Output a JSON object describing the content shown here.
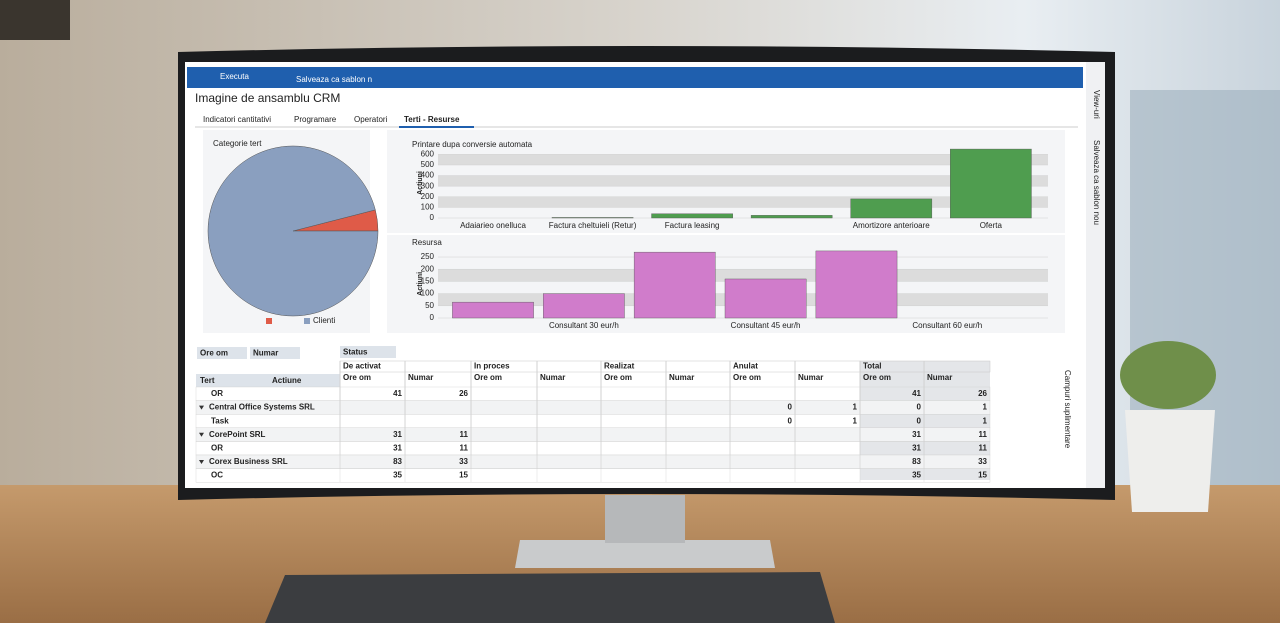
{
  "toolbar": {
    "run": "Executa",
    "save": "Salveaza ca sablon n"
  },
  "title": "Imagine de ansamblu CRM",
  "tabs": [
    "Indicatori cantitativi",
    "Programare",
    "Operatori",
    "Terti - Resurse"
  ],
  "active_tab": 3,
  "side_panel": {
    "views": "View-uri",
    "save_template": "Salveaza ca sablon nou",
    "extra_fields": "Campuri suplimentare"
  },
  "chart_data": [
    {
      "type": "pie",
      "title": "Categorie tert",
      "categories": [
        null,
        "Clienti"
      ],
      "values": [
        4,
        96
      ],
      "colors": [
        "#df5b48",
        "#8a9fbf"
      ]
    },
    {
      "type": "bar",
      "title": "Printare dupa conversie automata",
      "y_label": "Actiuni",
      "categories": [
        "Adaiarieo onelluca",
        "Factura cheltuieli (Retur)",
        "Factura leasing",
        null,
        "Amortizore anterioare",
        "Oferta"
      ],
      "values": [
        0,
        5,
        40,
        25,
        180,
        650
      ],
      "color": "#4f9d4f",
      "ylim": [
        0,
        660
      ],
      "yticks": [
        0,
        100,
        200,
        300,
        400,
        500,
        600
      ],
      "grid": true
    },
    {
      "type": "bar",
      "title": "Resursa",
      "y_label": "Actiuni",
      "categories": [
        null,
        "Consultant 30 eur/h",
        null,
        "Consultant 45 eur/h",
        null,
        "Consultant 60 eur/h"
      ],
      "values": [
        65,
        100,
        270,
        160,
        275,
        null
      ],
      "color": "#d07ccb",
      "ylim": [
        0,
        280
      ],
      "yticks": [
        0,
        50,
        100,
        150,
        200,
        250
      ],
      "grid": true
    }
  ],
  "pivot": {
    "filters": [
      "Ore om",
      "Numar"
    ],
    "column_filter": "Status",
    "row_headers": [
      "Tert",
      "Actiune"
    ],
    "groups": [
      "De activat",
      "In proces",
      "Realizat",
      "Anulat",
      "Total"
    ],
    "subcolumns": [
      "Ore om",
      "Numar"
    ],
    "rows": [
      {
        "label": "OR",
        "group": false,
        "values": [
          41,
          26,
          null,
          null,
          null,
          null,
          null,
          null,
          41,
          26
        ]
      },
      {
        "label": "Central Office Systems SRL",
        "group": true,
        "values": [
          null,
          null,
          null,
          null,
          null,
          null,
          0,
          1,
          0,
          1
        ]
      },
      {
        "label": "Task",
        "group": false,
        "values": [
          null,
          null,
          null,
          null,
          null,
          null,
          0,
          1,
          0,
          1
        ]
      },
      {
        "label": "CorePoint SRL",
        "group": true,
        "values": [
          31,
          11,
          null,
          null,
          null,
          null,
          null,
          null,
          31,
          11
        ]
      },
      {
        "label": "OR",
        "group": false,
        "values": [
          31,
          11,
          null,
          null,
          null,
          null,
          null,
          null,
          31,
          11
        ]
      },
      {
        "label": "Corex Business SRL",
        "group": true,
        "values": [
          83,
          33,
          null,
          null,
          null,
          null,
          null,
          null,
          83,
          33
        ]
      },
      {
        "label": "OC",
        "group": false,
        "values": [
          35,
          15,
          null,
          null,
          null,
          null,
          null,
          null,
          35,
          15
        ]
      }
    ]
  }
}
